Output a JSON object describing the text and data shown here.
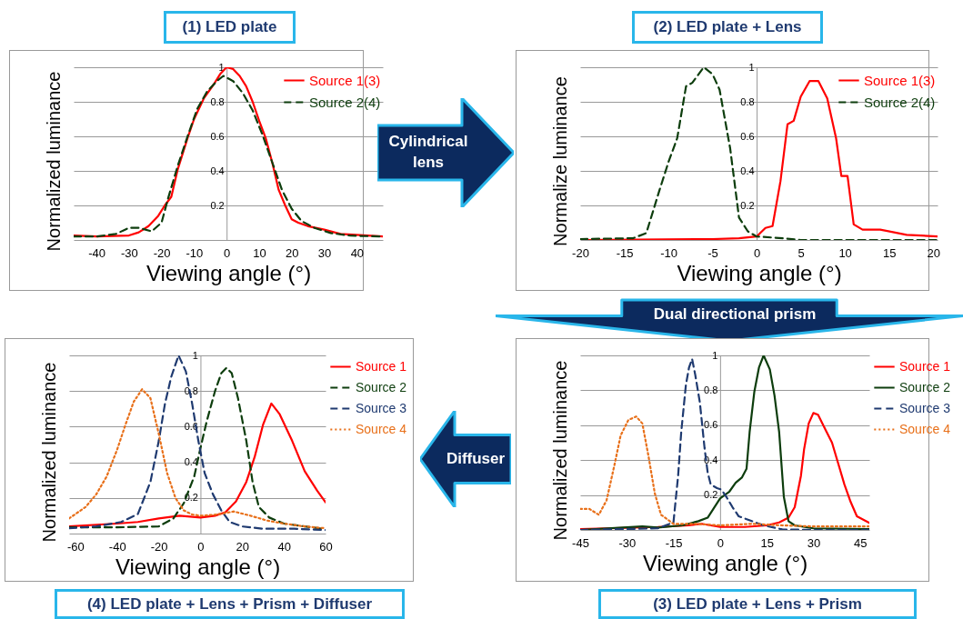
{
  "chart_data": [
    {
      "type": "line",
      "title": "(1) LED plate",
      "xlabel": "Viewing angle (°)",
      "ylabel": "Normalized luminance",
      "xlim": [
        -47,
        48
      ],
      "xticks": [
        -40,
        -30,
        -20,
        -10,
        0,
        10,
        20,
        30,
        40
      ],
      "ylim": [
        0,
        1
      ],
      "yticks": [
        0.2,
        0.4,
        0.6,
        0.8,
        1
      ],
      "grid": "y",
      "legend": "top right",
      "annotations": [
        "Cylindrical lens"
      ],
      "series": [
        {
          "name": "Source 1(3)",
          "color": "#ff0000",
          "line_style": "solid",
          "x": [
            -47,
            -40,
            -30,
            -27,
            -24,
            -21,
            -19,
            -17,
            -15,
            -12,
            -10,
            -7,
            -4,
            -2,
            0,
            2,
            4,
            6,
            8,
            10,
            12,
            14,
            16,
            18,
            20,
            22,
            25,
            30,
            35,
            48
          ],
          "values": [
            0.026,
            0.02,
            0.026,
            0.044,
            0.08,
            0.14,
            0.2,
            0.25,
            0.41,
            0.59,
            0.7,
            0.82,
            0.9,
            0.96,
            1.0,
            0.99,
            0.95,
            0.89,
            0.8,
            0.69,
            0.59,
            0.45,
            0.29,
            0.2,
            0.12,
            0.1,
            0.08,
            0.06,
            0.035,
            0.02
          ]
        },
        {
          "name": "Source 2(4)",
          "color": "#0d3d0d",
          "line_style": "dashed",
          "x": [
            -47,
            -40,
            -34,
            -30,
            -27,
            -23,
            -20,
            -18,
            -15,
            -12,
            -9,
            -6,
            -3,
            -1,
            2,
            5,
            8,
            11,
            14,
            17,
            20,
            23,
            27,
            32,
            38,
            48
          ],
          "values": [
            0.02,
            0.02,
            0.035,
            0.07,
            0.07,
            0.05,
            0.1,
            0.24,
            0.43,
            0.6,
            0.76,
            0.86,
            0.92,
            0.95,
            0.92,
            0.85,
            0.75,
            0.61,
            0.45,
            0.29,
            0.18,
            0.11,
            0.07,
            0.04,
            0.025,
            0.02
          ]
        }
      ]
    },
    {
      "type": "line",
      "title": "(2) LED plate + Lens",
      "xlabel": "Viewing angle (°)",
      "ylabel": "Normalize luminance",
      "xlim": [
        -20,
        20.5
      ],
      "xticks": [
        -20,
        -15,
        -10,
        -5,
        0,
        5,
        10,
        15,
        20
      ],
      "ylim": [
        0,
        1
      ],
      "yticks": [
        0.2,
        0.4,
        0.6,
        0.8,
        1
      ],
      "grid": "y",
      "legend": "top right",
      "annotations": [
        "Dual directional prism"
      ],
      "series": [
        {
          "name": "Source 1(3)",
          "color": "#ff0000",
          "line_style": "solid",
          "x": [
            -20,
            -5,
            -2,
            0,
            1,
            1.8,
            2.7,
            3.5,
            4.2,
            5,
            6,
            7,
            8,
            9,
            9.6,
            10.3,
            11,
            12,
            14,
            17,
            20.5
          ],
          "values": [
            0.0,
            0.005,
            0.01,
            0.02,
            0.07,
            0.08,
            0.34,
            0.67,
            0.69,
            0.83,
            0.92,
            0.92,
            0.82,
            0.59,
            0.37,
            0.37,
            0.09,
            0.06,
            0.06,
            0.03,
            0.02
          ]
        },
        {
          "name": "Source 2(4)",
          "color": "#0d3d0d",
          "line_style": "dashed",
          "x": [
            -20,
            -14,
            -12.5,
            -11,
            -10,
            -9,
            -8,
            -7.3,
            -6,
            -5,
            -4.2,
            -3,
            -2,
            -1,
            0,
            3,
            5,
            20.5
          ],
          "values": [
            0.005,
            0.01,
            0.04,
            0.29,
            0.45,
            0.59,
            0.89,
            0.91,
            1.0,
            0.96,
            0.87,
            0.53,
            0.13,
            0.05,
            0.02,
            0.01,
            0.0,
            0.0
          ]
        }
      ]
    },
    {
      "type": "line",
      "title": "(4) LED plate + Lens + Prism + Diffuser",
      "xlabel": "Viewing angle (°)",
      "ylabel": "Normalized luminance",
      "xlim": [
        -63,
        60
      ],
      "xticks": [
        -60,
        -40,
        -20,
        0,
        20,
        40,
        60
      ],
      "ylim": [
        0,
        1
      ],
      "yticks": [
        0.2,
        0.4,
        0.6,
        0.8,
        1
      ],
      "grid": "y",
      "legend": "top right",
      "series": [
        {
          "name": "Source 1",
          "color": "#ff0000",
          "line_style": "solid",
          "x": [
            -63,
            -40,
            -30,
            -20,
            -10,
            0,
            7,
            12,
            17,
            22,
            26,
            30,
            34,
            38,
            44,
            50,
            56,
            60
          ],
          "values": [
            0.04,
            0.056,
            0.065,
            0.085,
            0.1,
            0.09,
            0.1,
            0.12,
            0.18,
            0.29,
            0.43,
            0.61,
            0.73,
            0.67,
            0.52,
            0.35,
            0.24,
            0.175
          ]
        },
        {
          "name": "Source 2",
          "color": "#0d3d0d",
          "line_style": "dashed",
          "x": [
            -63,
            -40,
            -20,
            -13,
            -8,
            -3,
            0,
            3,
            7,
            10,
            12.5,
            15,
            18,
            22,
            25,
            28,
            33,
            40,
            50,
            60
          ],
          "values": [
            0.035,
            0.035,
            0.04,
            0.085,
            0.17,
            0.32,
            0.48,
            0.63,
            0.8,
            0.9,
            0.93,
            0.9,
            0.76,
            0.52,
            0.29,
            0.15,
            0.09,
            0.056,
            0.04,
            0.025
          ]
        },
        {
          "name": "Source 3",
          "color": "#1f3a70",
          "line_style": "dashed",
          "x": [
            -63,
            -50,
            -38,
            -30,
            -24,
            -20,
            -17,
            -14,
            -10.5,
            -7,
            -4,
            -1,
            2,
            6,
            10,
            14,
            20,
            30,
            45,
            60
          ],
          "values": [
            0.03,
            0.04,
            0.065,
            0.11,
            0.29,
            0.52,
            0.73,
            0.88,
            1.0,
            0.91,
            0.73,
            0.52,
            0.34,
            0.22,
            0.13,
            0.065,
            0.04,
            0.027,
            0.027,
            0.02
          ]
        },
        {
          "name": "Source 4",
          "color": "#e8701a",
          "line_style": "dotted",
          "x": [
            -63,
            -55,
            -50,
            -45,
            -40,
            -36,
            -32,
            -28,
            -24,
            -20,
            -16,
            -12,
            -8,
            -4,
            0,
            8,
            16,
            24,
            32,
            40,
            50,
            60
          ],
          "values": [
            0.085,
            0.15,
            0.22,
            0.32,
            0.47,
            0.61,
            0.74,
            0.81,
            0.76,
            0.56,
            0.34,
            0.2,
            0.13,
            0.107,
            0.1,
            0.107,
            0.124,
            0.1,
            0.073,
            0.056,
            0.04,
            0.03
          ]
        }
      ]
    },
    {
      "type": "line",
      "title": "(3) LED plate + Lens + Prism",
      "xlabel": "Viewing angle (°)",
      "ylabel": "Normalized luminance",
      "xlim": [
        -45,
        48
      ],
      "xticks": [
        -45,
        -30,
        -15,
        0,
        15,
        30,
        45
      ],
      "ylim": [
        0,
        1
      ],
      "yticks": [
        0.2,
        0.4,
        0.6,
        0.8,
        1
      ],
      "grid": "y",
      "legend": "top right",
      "annotations": [
        "Diffuser"
      ],
      "series": [
        {
          "name": "Source 1",
          "color": "#ff0000",
          "line_style": "solid",
          "x": [
            -45,
            -20,
            -10,
            -6,
            0,
            8,
            15,
            19,
            22,
            24,
            26,
            27,
            28.5,
            30,
            31.5,
            34,
            36,
            38,
            40,
            42,
            44,
            48
          ],
          "values": [
            0.005,
            0.017,
            0.026,
            0.035,
            0.017,
            0.017,
            0.026,
            0.043,
            0.07,
            0.13,
            0.31,
            0.46,
            0.61,
            0.67,
            0.66,
            0.57,
            0.5,
            0.38,
            0.26,
            0.16,
            0.078,
            0.04
          ]
        },
        {
          "name": "Source 2",
          "color": "#0d3d0d",
          "line_style": "solid",
          "x": [
            -45,
            -25,
            -20,
            -12,
            -7,
            -4,
            0,
            3,
            5,
            7,
            8.5,
            9.5,
            11,
            12.5,
            14,
            16,
            17.5,
            19,
            20.5,
            22,
            24,
            30,
            48
          ],
          "values": [
            0.0,
            0.02,
            0.014,
            0.026,
            0.05,
            0.07,
            0.18,
            0.22,
            0.27,
            0.3,
            0.35,
            0.56,
            0.79,
            0.93,
            1.0,
            0.92,
            0.77,
            0.56,
            0.19,
            0.05,
            0.026,
            0.009,
            0.005
          ]
        },
        {
          "name": "Source 3",
          "color": "#1f3a70",
          "line_style": "dashed",
          "x": [
            -45,
            -20,
            -15,
            -13.5,
            -12.5,
            -11,
            -10,
            -9,
            -8,
            -6.5,
            -5,
            -4,
            -3,
            -1,
            0.5,
            2,
            4,
            6,
            10,
            14,
            20,
            30,
            48
          ],
          "values": [
            0.0,
            0.009,
            0.043,
            0.31,
            0.56,
            0.83,
            0.93,
            0.98,
            0.89,
            0.73,
            0.47,
            0.33,
            0.26,
            0.24,
            0.23,
            0.19,
            0.13,
            0.078,
            0.052,
            0.026,
            0.003,
            0.0,
            0.0
          ]
        },
        {
          "name": "Source 4",
          "color": "#e8701a",
          "line_style": "dotted",
          "x": [
            -45,
            -42,
            -39,
            -36.5,
            -34,
            -32,
            -29.5,
            -27,
            -25,
            -23,
            -21,
            -19,
            -15,
            -8,
            0,
            10,
            20,
            30,
            48
          ],
          "values": [
            0.12,
            0.12,
            0.087,
            0.17,
            0.37,
            0.54,
            0.63,
            0.65,
            0.61,
            0.42,
            0.21,
            0.087,
            0.035,
            0.035,
            0.026,
            0.035,
            0.026,
            0.02,
            0.02
          ]
        }
      ]
    }
  ]
}
